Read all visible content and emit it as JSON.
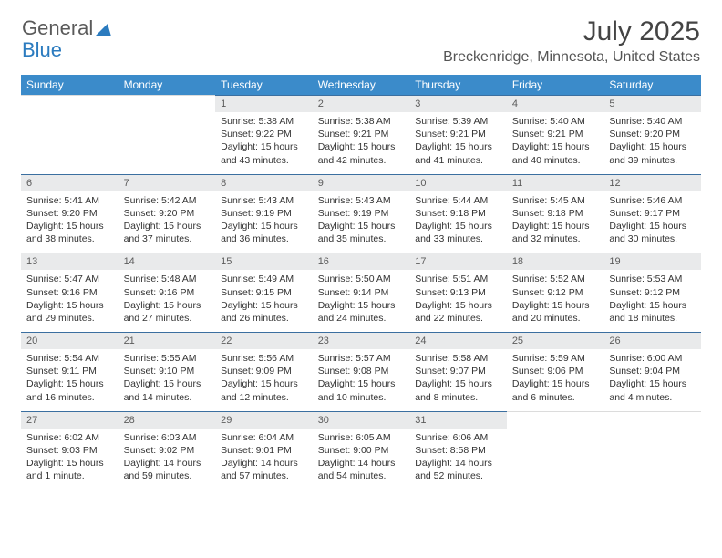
{
  "logo": {
    "text1": "General",
    "text2": "Blue"
  },
  "title": "July 2025",
  "location": "Breckenridge, Minnesota, United States",
  "colors": {
    "header_bg": "#3b8bca",
    "header_text": "#ffffff",
    "daynum_bg": "#e9eaeb",
    "daynum_text": "#5c5c5c",
    "border_top": "#3b6fa0",
    "logo_gray": "#5a5a5a",
    "logo_blue": "#2b7bbf",
    "text": "#333333"
  },
  "day_headers": [
    "Sunday",
    "Monday",
    "Tuesday",
    "Wednesday",
    "Thursday",
    "Friday",
    "Saturday"
  ],
  "weeks": [
    [
      null,
      null,
      {
        "n": "1",
        "sunrise": "5:38 AM",
        "sunset": "9:22 PM",
        "daylight": "15 hours and 43 minutes."
      },
      {
        "n": "2",
        "sunrise": "5:38 AM",
        "sunset": "9:21 PM",
        "daylight": "15 hours and 42 minutes."
      },
      {
        "n": "3",
        "sunrise": "5:39 AM",
        "sunset": "9:21 PM",
        "daylight": "15 hours and 41 minutes."
      },
      {
        "n": "4",
        "sunrise": "5:40 AM",
        "sunset": "9:21 PM",
        "daylight": "15 hours and 40 minutes."
      },
      {
        "n": "5",
        "sunrise": "5:40 AM",
        "sunset": "9:20 PM",
        "daylight": "15 hours and 39 minutes."
      }
    ],
    [
      {
        "n": "6",
        "sunrise": "5:41 AM",
        "sunset": "9:20 PM",
        "daylight": "15 hours and 38 minutes."
      },
      {
        "n": "7",
        "sunrise": "5:42 AM",
        "sunset": "9:20 PM",
        "daylight": "15 hours and 37 minutes."
      },
      {
        "n": "8",
        "sunrise": "5:43 AM",
        "sunset": "9:19 PM",
        "daylight": "15 hours and 36 minutes."
      },
      {
        "n": "9",
        "sunrise": "5:43 AM",
        "sunset": "9:19 PM",
        "daylight": "15 hours and 35 minutes."
      },
      {
        "n": "10",
        "sunrise": "5:44 AM",
        "sunset": "9:18 PM",
        "daylight": "15 hours and 33 minutes."
      },
      {
        "n": "11",
        "sunrise": "5:45 AM",
        "sunset": "9:18 PM",
        "daylight": "15 hours and 32 minutes."
      },
      {
        "n": "12",
        "sunrise": "5:46 AM",
        "sunset": "9:17 PM",
        "daylight": "15 hours and 30 minutes."
      }
    ],
    [
      {
        "n": "13",
        "sunrise": "5:47 AM",
        "sunset": "9:16 PM",
        "daylight": "15 hours and 29 minutes."
      },
      {
        "n": "14",
        "sunrise": "5:48 AM",
        "sunset": "9:16 PM",
        "daylight": "15 hours and 27 minutes."
      },
      {
        "n": "15",
        "sunrise": "5:49 AM",
        "sunset": "9:15 PM",
        "daylight": "15 hours and 26 minutes."
      },
      {
        "n": "16",
        "sunrise": "5:50 AM",
        "sunset": "9:14 PM",
        "daylight": "15 hours and 24 minutes."
      },
      {
        "n": "17",
        "sunrise": "5:51 AM",
        "sunset": "9:13 PM",
        "daylight": "15 hours and 22 minutes."
      },
      {
        "n": "18",
        "sunrise": "5:52 AM",
        "sunset": "9:12 PM",
        "daylight": "15 hours and 20 minutes."
      },
      {
        "n": "19",
        "sunrise": "5:53 AM",
        "sunset": "9:12 PM",
        "daylight": "15 hours and 18 minutes."
      }
    ],
    [
      {
        "n": "20",
        "sunrise": "5:54 AM",
        "sunset": "9:11 PM",
        "daylight": "15 hours and 16 minutes."
      },
      {
        "n": "21",
        "sunrise": "5:55 AM",
        "sunset": "9:10 PM",
        "daylight": "15 hours and 14 minutes."
      },
      {
        "n": "22",
        "sunrise": "5:56 AM",
        "sunset": "9:09 PM",
        "daylight": "15 hours and 12 minutes."
      },
      {
        "n": "23",
        "sunrise": "5:57 AM",
        "sunset": "9:08 PM",
        "daylight": "15 hours and 10 minutes."
      },
      {
        "n": "24",
        "sunrise": "5:58 AM",
        "sunset": "9:07 PM",
        "daylight": "15 hours and 8 minutes."
      },
      {
        "n": "25",
        "sunrise": "5:59 AM",
        "sunset": "9:06 PM",
        "daylight": "15 hours and 6 minutes."
      },
      {
        "n": "26",
        "sunrise": "6:00 AM",
        "sunset": "9:04 PM",
        "daylight": "15 hours and 4 minutes."
      }
    ],
    [
      {
        "n": "27",
        "sunrise": "6:02 AM",
        "sunset": "9:03 PM",
        "daylight": "15 hours and 1 minute."
      },
      {
        "n": "28",
        "sunrise": "6:03 AM",
        "sunset": "9:02 PM",
        "daylight": "14 hours and 59 minutes."
      },
      {
        "n": "29",
        "sunrise": "6:04 AM",
        "sunset": "9:01 PM",
        "daylight": "14 hours and 57 minutes."
      },
      {
        "n": "30",
        "sunrise": "6:05 AM",
        "sunset": "9:00 PM",
        "daylight": "14 hours and 54 minutes."
      },
      {
        "n": "31",
        "sunrise": "6:06 AM",
        "sunset": "8:58 PM",
        "daylight": "14 hours and 52 minutes."
      },
      null,
      null
    ]
  ],
  "labels": {
    "sunrise": "Sunrise:",
    "sunset": "Sunset:",
    "daylight": "Daylight:"
  }
}
